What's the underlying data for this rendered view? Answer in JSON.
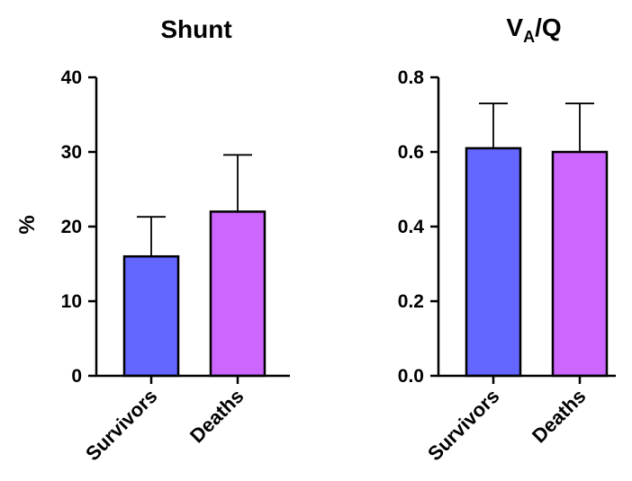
{
  "chart_data": [
    {
      "type": "bar",
      "title": "Shunt",
      "title_parts": [],
      "ylabel": "%",
      "categories": [
        "Survivors",
        "Deaths"
      ],
      "values": [
        16,
        22
      ],
      "errors": [
        5.3,
        7.6
      ],
      "ylim": [
        0,
        40
      ],
      "yticks": [
        0,
        10,
        20,
        30,
        40
      ],
      "ytick_labels": [
        "0",
        "10",
        "20",
        "30",
        "40"
      ],
      "colors": [
        "#6366ff",
        "#cc66ff"
      ],
      "grid": false,
      "legend": "none"
    },
    {
      "type": "bar",
      "title": "VA/Q",
      "title_parts": [
        {
          "text": "V",
          "sub": false
        },
        {
          "text": "A",
          "sub": true
        },
        {
          "text": "/Q",
          "sub": false
        }
      ],
      "ylabel": "",
      "categories": [
        "Survivors",
        "Deaths"
      ],
      "values": [
        0.61,
        0.6
      ],
      "errors": [
        0.12,
        0.13
      ],
      "ylim": [
        0,
        0.8
      ],
      "yticks": [
        0,
        0.2,
        0.4,
        0.6,
        0.8
      ],
      "ytick_labels": [
        "0.0",
        "0.2",
        "0.4",
        "0.6",
        "0.8"
      ],
      "colors": [
        "#6366ff",
        "#cc66ff"
      ],
      "grid": false,
      "legend": "none"
    }
  ]
}
